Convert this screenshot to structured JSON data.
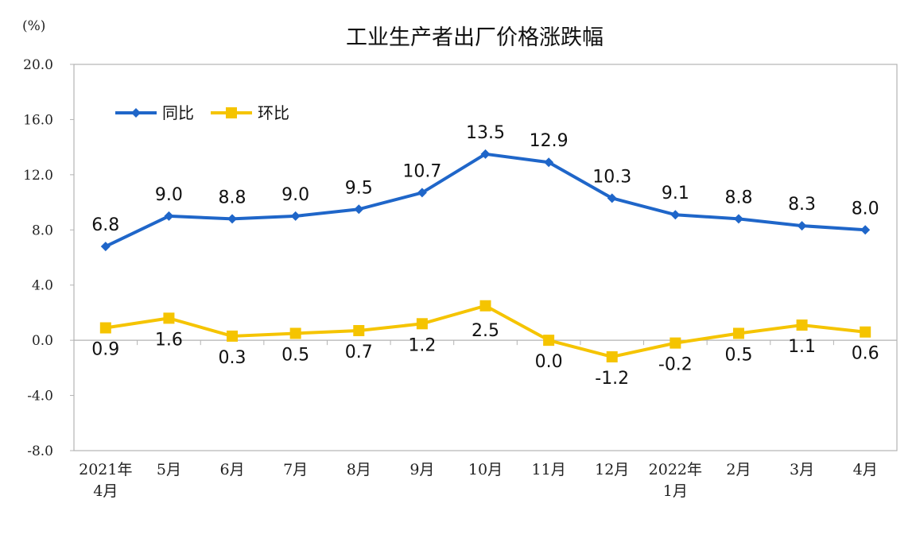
{
  "chart_data": {
    "type": "line",
    "title": "工业生产者出厂价格涨跌幅",
    "unit": "(%)",
    "xlabel": "",
    "ylabel": "",
    "ylim": [
      -8.0,
      20.0
    ],
    "yticks": [
      "20.0",
      "16.0",
      "12.0",
      "8.0",
      "4.0",
      "0.0",
      "-4.0",
      "-8.0"
    ],
    "categories": [
      [
        "2021年",
        "4月"
      ],
      [
        "5月"
      ],
      [
        "6月"
      ],
      [
        "7月"
      ],
      [
        "8月"
      ],
      [
        "9月"
      ],
      [
        "10月"
      ],
      [
        "11月"
      ],
      [
        "12月"
      ],
      [
        "2022年",
        "1月"
      ],
      [
        "2月"
      ],
      [
        "3月"
      ],
      [
        "4月"
      ]
    ],
    "series": [
      {
        "name": "同比",
        "color": "#1f66c9",
        "marker": "diamond",
        "values": [
          6.8,
          9.0,
          8.8,
          9.0,
          9.5,
          10.7,
          13.5,
          12.9,
          10.3,
          9.1,
          8.8,
          8.3,
          8.0
        ],
        "labels": [
          "6.8",
          "9.0",
          "8.8",
          "9.0",
          "9.5",
          "10.7",
          "13.5",
          "12.9",
          "10.3",
          "9.1",
          "8.8",
          "8.3",
          "8.0"
        ]
      },
      {
        "name": "环比",
        "color": "#f5c400",
        "marker": "square",
        "values": [
          0.9,
          1.6,
          0.3,
          0.5,
          0.7,
          1.2,
          2.5,
          0.0,
          -1.2,
          -0.2,
          0.5,
          1.1,
          0.6
        ],
        "labels": [
          "0.9",
          "1.6",
          "0.3",
          "0.5",
          "0.7",
          "1.2",
          "2.5",
          "0.0",
          "-1.2",
          "-0.2",
          "0.5",
          "1.1",
          "0.6"
        ]
      }
    ],
    "legend_position": "top-left",
    "grid": false
  }
}
